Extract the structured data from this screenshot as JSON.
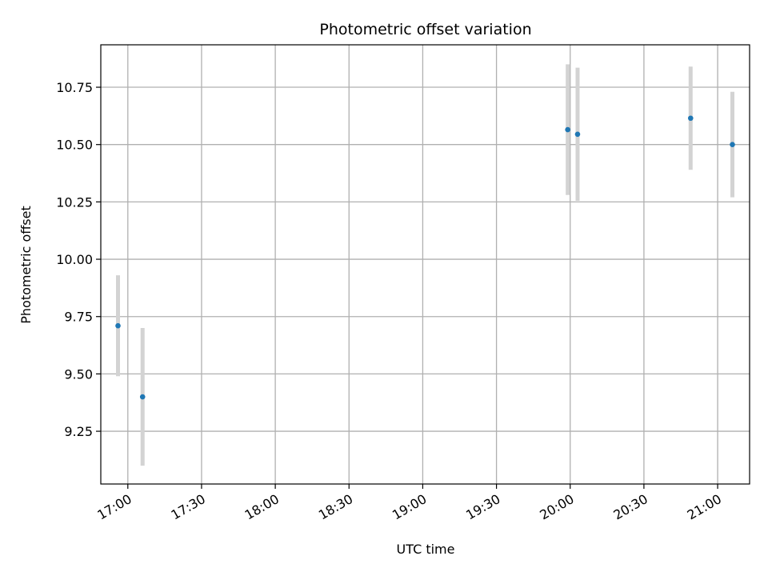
{
  "chart_data": {
    "type": "scatter",
    "title": "Photometric offset variation",
    "xlabel": "UTC time",
    "ylabel": "Photometric offset",
    "x_axis_kind": "time",
    "xlim": [
      "16:49",
      "21:13"
    ],
    "ylim": [
      9.02,
      10.935
    ],
    "grid": true,
    "x_ticks": [
      "17:00",
      "17:30",
      "18:00",
      "18:30",
      "19:00",
      "19:30",
      "20:00",
      "20:30",
      "21:00"
    ],
    "y_ticks": [
      "9.25",
      "9.50",
      "9.75",
      "10.00",
      "10.25",
      "10.50",
      "10.75"
    ],
    "point_color": "#1f77b4",
    "errorbar_color": "#d3d3d3",
    "points": [
      {
        "x": "16:56",
        "y": 9.71,
        "err": 0.22
      },
      {
        "x": "17:06",
        "y": 9.4,
        "err": 0.3
      },
      {
        "x": "19:59",
        "y": 10.565,
        "err": 0.285
      },
      {
        "x": "20:03",
        "y": 10.545,
        "err": 0.29
      },
      {
        "x": "20:49",
        "y": 10.615,
        "err": 0.225
      },
      {
        "x": "21:06",
        "y": 10.5,
        "err": 0.23
      }
    ]
  }
}
